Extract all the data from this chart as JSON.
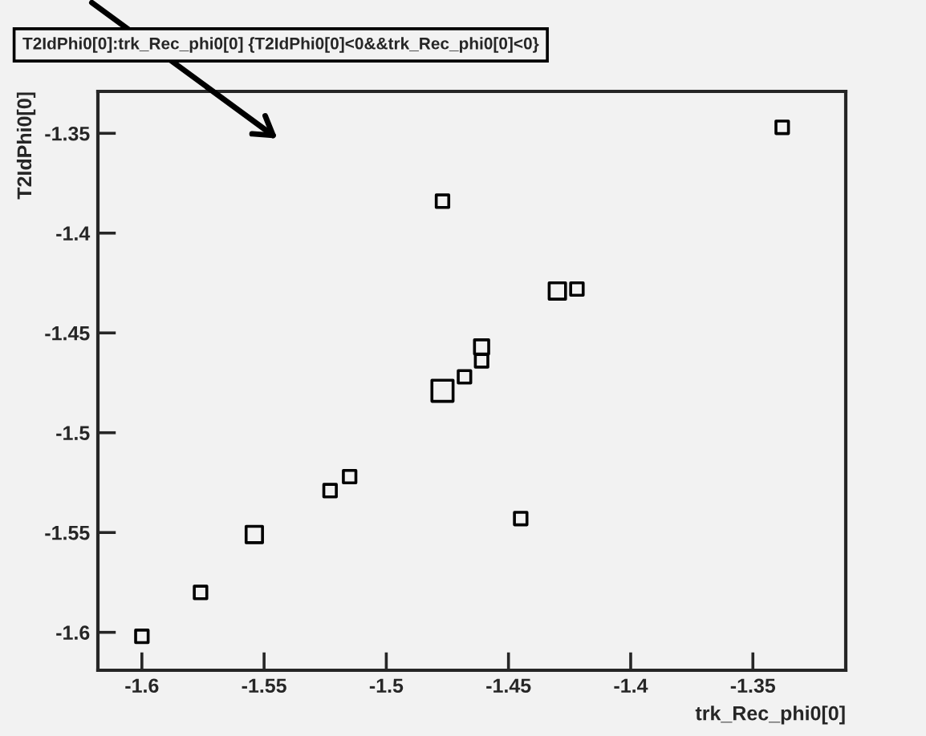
{
  "chart_data": {
    "type": "bubble",
    "title": "T2IdPhi0[0]:trk_Rec_phi0[0] {T2IdPhi0[0]<0&&trk_Rec_phi0[0]<0}",
    "xlabel": "trk_Rec_phi0[0]",
    "ylabel": "T2IdPhi0[0]",
    "x": [
      -1.6,
      -1.576,
      -1.554,
      -1.523,
      -1.515,
      -1.477,
      -1.477,
      -1.468,
      -1.461,
      -1.461,
      -1.43,
      -1.422,
      -1.338,
      -1.445
    ],
    "values": [
      -1.602,
      -1.58,
      -1.551,
      -1.529,
      -1.522,
      -1.384,
      -1.479,
      -1.472,
      -1.457,
      -1.464,
      -1.429,
      -1.428,
      -1.347,
      -1.543
    ],
    "sizes": [
      0.35,
      0.35,
      0.6,
      0.35,
      0.35,
      0.35,
      1,
      0.35,
      0.45,
      0.35,
      0.6,
      0.35,
      0.35,
      0.35
    ],
    "color": "#000000",
    "marker": "square",
    "xlim": [
      -1.618,
      -1.312
    ],
    "xticks": [
      -1.6,
      -1.55,
      -1.5,
      -1.45,
      -1.4,
      -1.35
    ],
    "ylim": [
      -1.619,
      -1.329
    ],
    "yticks": [
      -1.6,
      -1.55,
      -1.5,
      -1.45,
      -1.4,
      -1.35
    ],
    "grid": false
  }
}
